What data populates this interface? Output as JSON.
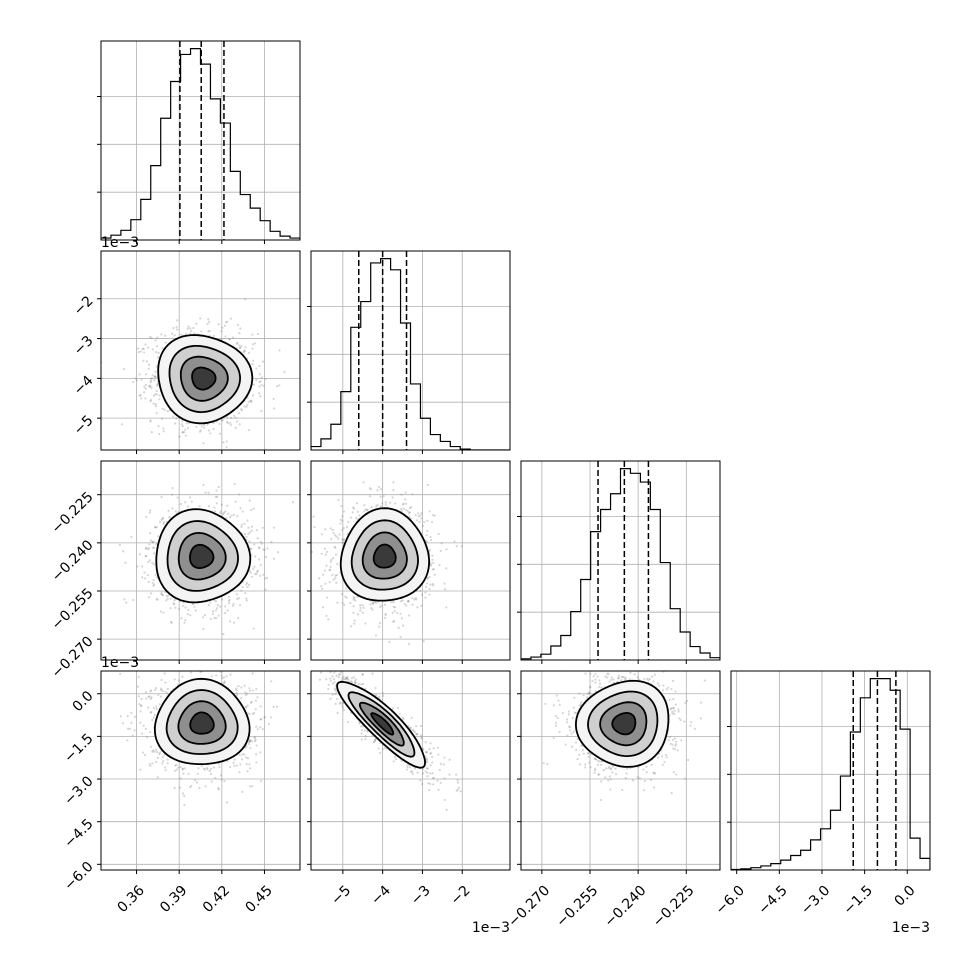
{
  "chart_data": {
    "type": "scatter",
    "title": "",
    "params": [
      {
        "name": "",
        "range": [
          0.335,
          0.475
        ],
        "ticks": [
          0.36,
          0.39,
          0.42,
          0.45
        ],
        "tick_labels": [
          "0.36",
          "0.39",
          "0.42",
          "0.45"
        ],
        "offset_text": "",
        "quantiles": [
          0.3905,
          0.4055,
          0.4215
        ]
      },
      {
        "name": "",
        "range": [
          -5.8,
          -0.8
        ],
        "ticks": [
          -5,
          -4,
          -3,
          -2
        ],
        "tick_labels": [
          "−5",
          "−4",
          "−3",
          "−2"
        ],
        "offset_text": "1e−3",
        "quantiles": [
          -4.6,
          -4.0,
          -3.4
        ]
      },
      {
        "name": "",
        "range": [
          -0.2765,
          -0.2145
        ],
        "ticks": [
          -0.27,
          -0.255,
          -0.24,
          -0.225
        ],
        "tick_labels": [
          "−0.270",
          "−0.255",
          "−0.240",
          "−0.225"
        ],
        "offset_text": "",
        "quantiles": [
          -0.2525,
          -0.2443,
          -0.2368
        ]
      },
      {
        "name": "",
        "range": [
          -6.2,
          0.8
        ],
        "ticks": [
          -6.0,
          -4.5,
          -3.0,
          -1.5,
          0.0
        ],
        "tick_labels": [
          "−6.0",
          "−4.5",
          "−3.0",
          "−1.5",
          "0.0"
        ],
        "offset_text": "1e−3",
        "quantiles": [
          -1.9,
          -1.05,
          -0.4
        ]
      }
    ],
    "diagonal_histograms": [
      {
        "param": 0,
        "bin_edges": [
          0.335,
          0.342,
          0.349,
          0.356,
          0.363,
          0.37,
          0.377,
          0.384,
          0.391,
          0.398,
          0.405,
          0.412,
          0.419,
          0.426,
          0.433,
          0.44,
          0.447,
          0.454,
          0.461,
          0.468,
          0.475
        ],
        "counts": [
          2,
          5,
          10,
          21,
          42,
          77,
          126,
          164,
          192,
          198,
          182,
          146,
          121,
          71,
          47,
          33,
          20,
          9,
          4,
          2
        ]
      },
      {
        "param": 1,
        "bin_edges": [
          -5.8,
          -5.55,
          -5.3,
          -5.05,
          -4.8,
          -4.55,
          -4.3,
          -4.05,
          -3.8,
          -3.55,
          -3.3,
          -3.05,
          -2.8,
          -2.55,
          -2.3,
          -2.05,
          -1.8,
          -1.55,
          -1.3,
          -1.05,
          -0.8
        ],
        "counts": [
          4,
          13,
          30,
          68,
          143,
          173,
          218,
          223,
          210,
          148,
          77,
          37,
          18,
          10,
          4,
          1,
          0,
          0,
          0,
          0
        ]
      },
      {
        "param": 2,
        "bin_edges": [
          -0.2765,
          -0.2734,
          -0.2703,
          -0.2672,
          -0.2641,
          -0.261,
          -0.2579,
          -0.2548,
          -0.2517,
          -0.2486,
          -0.2455,
          -0.2424,
          -0.2393,
          -0.2362,
          -0.2331,
          -0.23,
          -0.2269,
          -0.2238,
          -0.2207,
          -0.2176,
          -0.2145
        ],
        "counts": [
          2,
          5,
          10,
          24,
          42,
          83,
          138,
          220,
          258,
          285,
          328,
          320,
          305,
          258,
          167,
          88,
          48,
          23,
          12,
          4
        ]
      },
      {
        "param": 3,
        "bin_edges": [
          -6.2,
          -5.85,
          -5.5,
          -5.15,
          -4.8,
          -4.45,
          -4.1,
          -3.75,
          -3.4,
          -3.05,
          -2.7,
          -2.35,
          -2.0,
          -1.65,
          -1.3,
          -0.95,
          -0.6,
          -0.25,
          0.1,
          0.45,
          0.8
        ],
        "counts": [
          1,
          2,
          4,
          7,
          11,
          17,
          25,
          34,
          52,
          71,
          103,
          162,
          238,
          297,
          330,
          330,
          310,
          243,
          55,
          20
        ]
      }
    ],
    "pair_panels": [
      {
        "x_param": 0,
        "y_param": 1,
        "center": [
          0.407,
          -4.0
        ],
        "sd": [
          0.0165,
          0.55
        ],
        "correlation": -0.05
      },
      {
        "x_param": 0,
        "y_param": 2,
        "center": [
          0.4055,
          -0.2443
        ],
        "sd": [
          0.0165,
          0.0072
        ],
        "correlation": 0.0
      },
      {
        "x_param": 1,
        "y_param": 2,
        "center": [
          -3.95,
          -0.2443
        ],
        "sd": [
          0.55,
          0.0072
        ],
        "correlation": 0.02
      },
      {
        "x_param": 0,
        "y_param": 3,
        "center": [
          0.406,
          -1.05
        ],
        "sd": [
          0.0165,
          0.75
        ],
        "correlation": 0.0
      },
      {
        "x_param": 1,
        "y_param": 3,
        "center": [
          -4.0,
          -1.05
        ],
        "sd": [
          0.55,
          0.75
        ],
        "correlation": -0.88
      },
      {
        "x_param": 2,
        "y_param": 3,
        "center": [
          -0.2443,
          -1.05
        ],
        "sd": [
          0.0072,
          0.75
        ],
        "correlation": 0.05
      }
    ],
    "contour_levels_sigma": [
      0.5,
      1.0,
      1.5,
      2.0
    ],
    "grid": true,
    "legend": "none"
  }
}
